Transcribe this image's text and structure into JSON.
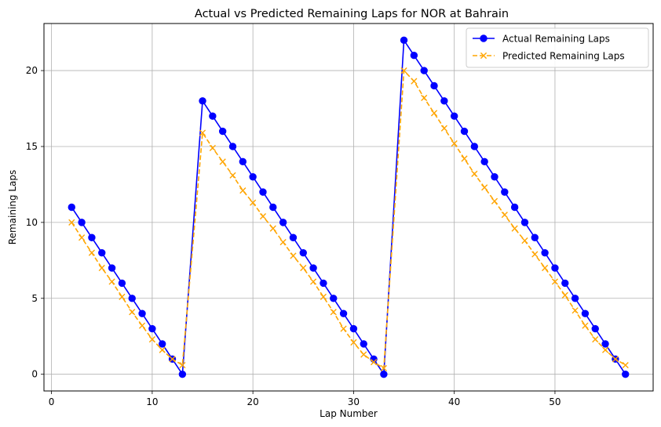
{
  "chart_data": {
    "type": "line",
    "title": "Actual vs Predicted Remaining Laps for NOR at Bahrain",
    "xlabel": "Lap Number",
    "ylabel": "Remaining Laps",
    "xlim": [
      -0.75,
      59.75
    ],
    "ylim": [
      -1.1,
      23.1
    ],
    "xticks": [
      0,
      10,
      20,
      30,
      40,
      50
    ],
    "yticks": [
      0,
      5,
      10,
      15,
      20
    ],
    "grid": true,
    "legend_position": "top-right",
    "x": [
      2,
      3,
      4,
      5,
      6,
      7,
      8,
      9,
      10,
      11,
      12,
      13,
      15,
      16,
      17,
      18,
      19,
      20,
      21,
      22,
      23,
      24,
      25,
      26,
      27,
      28,
      29,
      30,
      31,
      32,
      33,
      35,
      36,
      37,
      38,
      39,
      40,
      41,
      42,
      43,
      44,
      45,
      46,
      47,
      48,
      49,
      50,
      51,
      52,
      53,
      54,
      55,
      56,
      57
    ],
    "series": [
      {
        "name": "Actual Remaining Laps",
        "color": "#0000ff",
        "linestyle": "solid",
        "marker": "circle",
        "values": [
          11,
          10,
          9,
          8,
          7,
          6,
          5,
          4,
          3,
          2,
          1,
          0,
          18,
          17,
          16,
          15,
          14,
          13,
          12,
          11,
          10,
          9,
          8,
          7,
          6,
          5,
          4,
          3,
          2,
          1,
          0,
          22,
          21,
          20,
          19,
          18,
          17,
          16,
          15,
          14,
          13,
          12,
          11,
          10,
          9,
          8,
          7,
          6,
          5,
          4,
          3,
          2,
          1,
          0
        ]
      },
      {
        "name": "Predicted Remaining Laps",
        "color": "#ffa500",
        "linestyle": "dashed",
        "marker": "x",
        "values": [
          10,
          9,
          8,
          7,
          6.1,
          5.1,
          4.1,
          3.2,
          2.3,
          1.6,
          1.0,
          0.6,
          15.9,
          14.9,
          14.0,
          13.1,
          12.1,
          11.3,
          10.4,
          9.6,
          8.7,
          7.8,
          7.0,
          6.1,
          5.1,
          4.1,
          3.0,
          2.1,
          1.3,
          0.8,
          0.4,
          20.0,
          19.3,
          18.2,
          17.2,
          16.2,
          15.2,
          14.2,
          13.2,
          12.3,
          11.4,
          10.5,
          9.6,
          8.8,
          7.9,
          7.0,
          6.1,
          5.2,
          4.2,
          3.2,
          2.3,
          1.6,
          1.0,
          0.6
        ]
      }
    ]
  }
}
